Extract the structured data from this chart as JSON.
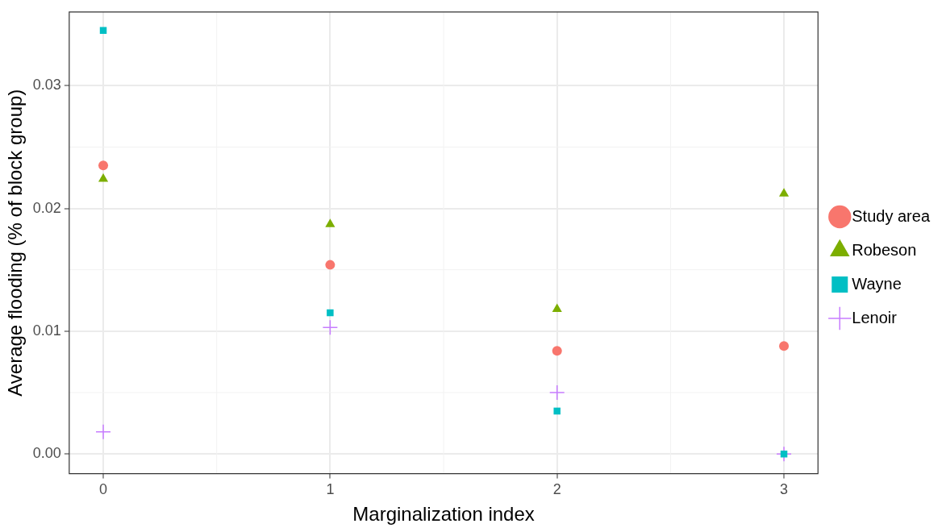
{
  "chart_data": {
    "type": "scatter",
    "xlabel": "Marginalization index",
    "ylabel": "Average flooding (% of block group)",
    "x": [
      0,
      1,
      2,
      3
    ],
    "xlim": [
      -0.15,
      3.15
    ],
    "xticks": [
      0,
      1,
      2,
      3
    ],
    "ylim": [
      -0.0016,
      0.036
    ],
    "yticks": [
      {
        "value": 0,
        "label": "0.00"
      },
      {
        "value": 0.01,
        "label": "0.01"
      },
      {
        "value": 0.02,
        "label": "0.02"
      },
      {
        "value": 0.03,
        "label": "0.03"
      }
    ],
    "grid": true,
    "legend": "right",
    "series": [
      {
        "name": "Study area",
        "color": "#f8766d",
        "marker": "circle",
        "values": [
          0.0235,
          0.0154,
          0.0084,
          0.0088
        ]
      },
      {
        "name": "Robeson",
        "color": "#7cae00",
        "marker": "triangle",
        "values": [
          0.0224,
          0.0187,
          0.0118,
          0.0212
        ]
      },
      {
        "name": "Wayne",
        "color": "#00bfc4",
        "marker": "square",
        "values": [
          0.0345,
          0.0115,
          0.0035,
          0
        ]
      },
      {
        "name": "Lenoir",
        "color": "#c77cff",
        "marker": "cross",
        "values": [
          0.0018,
          0.0103,
          0.005,
          0
        ]
      }
    ]
  }
}
